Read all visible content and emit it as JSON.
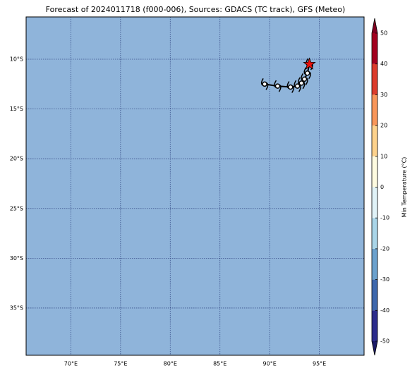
{
  "chart_data": {
    "type": "map",
    "title": "Forecast of 2024011718 (f000-006), Sources: GDACS (TC track), GFS (Meteo)",
    "xlim": [
      65.5,
      99.5
    ],
    "ylim": [
      -39.75,
      -5.75
    ],
    "xticks": [
      {
        "value": 70,
        "label": "70°E"
      },
      {
        "value": 75,
        "label": "75°E"
      },
      {
        "value": 80,
        "label": "80°E"
      },
      {
        "value": 85,
        "label": "85°E"
      },
      {
        "value": 90,
        "label": "90°E"
      },
      {
        "value": 95,
        "label": "95°E"
      }
    ],
    "yticks": [
      {
        "value": -10,
        "label": "10°S"
      },
      {
        "value": -15,
        "label": "15°S"
      },
      {
        "value": -20,
        "label": "20°S"
      },
      {
        "value": -25,
        "label": "25°S"
      },
      {
        "value": -30,
        "label": "30°S"
      },
      {
        "value": -35,
        "label": "35°S"
      }
    ],
    "grid": true,
    "ocean_color": "#8fb4da",
    "grid_color": "#3a4f8a",
    "track": {
      "color": "#000000",
      "lon": [
        89.5,
        90.8,
        92.1,
        92.8,
        93.2,
        93.5,
        93.8,
        94.0
      ],
      "lat": [
        -12.5,
        -12.7,
        -12.8,
        -12.7,
        -12.4,
        -12.0,
        -11.4,
        -10.5
      ]
    },
    "current": {
      "lon": 94.0,
      "lat": -10.5,
      "color": "#e8120c"
    },
    "colorbar": {
      "label": "Min Temperature (°C)",
      "lim": [
        -50,
        50
      ],
      "ticks": [
        -50,
        -40,
        -30,
        -20,
        -10,
        0,
        10,
        20,
        30,
        40,
        50
      ],
      "colors": [
        "#2c2c8c",
        "#3e68ad",
        "#6ba1cd",
        "#a9d5e8",
        "#e0f2f7",
        "#fefbe0",
        "#fdd28c",
        "#f8965a",
        "#dc3c2c",
        "#a3001f"
      ],
      "extend_colors": [
        "#1a1a66",
        "#7f0020"
      ]
    }
  }
}
